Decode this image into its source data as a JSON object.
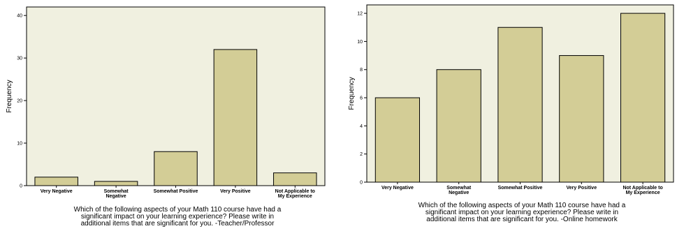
{
  "chart_data": [
    {
      "type": "bar",
      "categories": [
        [
          "Very Negative"
        ],
        [
          "Somewhat",
          "Negative"
        ],
        [
          "Somewhat Positive"
        ],
        [
          "Very Positive"
        ],
        [
          "Not Applicable to",
          "My Experience"
        ]
      ],
      "values": [
        2,
        1,
        8,
        32,
        3
      ],
      "ylabel": "Frequency",
      "xlabel_lines": [
        "Which of the following aspects of your Math 110 course have had a",
        "significant impact on your learning experience?  Please write in",
        "additional items that are significant for  you. -Teacher/Professor"
      ],
      "ylim": [
        0,
        42
      ],
      "yticks": [
        0,
        10,
        20,
        30,
        40
      ],
      "colors": {
        "bar": "#d3cd96",
        "plot_bg": "#f0f0e0"
      }
    },
    {
      "type": "bar",
      "categories": [
        [
          "Very Negative"
        ],
        [
          "Somewhat",
          "Negative"
        ],
        [
          "Somewhat Positive"
        ],
        [
          "Very Positive"
        ],
        [
          "Not Applicable to",
          "My Experience"
        ]
      ],
      "values": [
        6,
        8,
        11,
        9,
        12
      ],
      "ylabel": "Frequency",
      "xlabel_lines": [
        "Which of the following aspects of your Math 110 course have had a",
        "significant impact on your learning experience?  Please write in",
        "additional items that are significant for  you. -Online homework"
      ],
      "ylim": [
        0,
        12.6
      ],
      "yticks": [
        0,
        2,
        4,
        6,
        8,
        10,
        12
      ],
      "colors": {
        "bar": "#d3cd96",
        "plot_bg": "#f0f0e0"
      }
    }
  ]
}
